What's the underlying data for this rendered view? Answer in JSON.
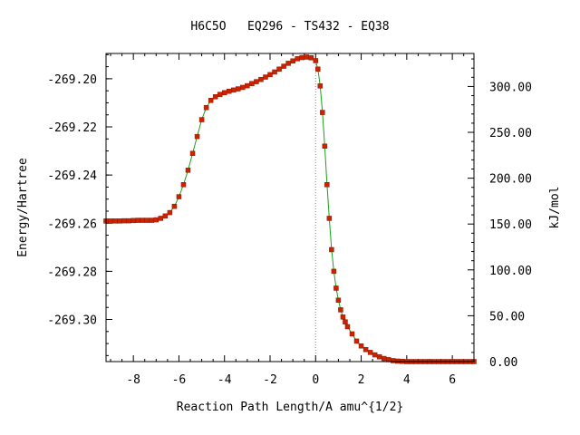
{
  "chart_data": {
    "type": "line",
    "title": "H6C5O   EQ296 - TS432 - EQ38",
    "xlabel": "Reaction Path Length/A amu^{1/2}",
    "ylabel": "Energy/Hartree",
    "y2label": "kJ/mol",
    "xlim": [
      -9.2,
      6.95
    ],
    "ylim": [
      -269.3175,
      -269.1895
    ],
    "y2lim": [
      0,
      336
    ],
    "xticks": [
      "-8",
      "-6",
      "-4",
      "-2",
      "0",
      "2",
      "4",
      "6"
    ],
    "xtick_values": [
      -8,
      -6,
      -4,
      -2,
      0,
      2,
      4,
      6
    ],
    "yticks": [
      "-269.20",
      "-269.22",
      "-269.24",
      "-269.26",
      "-269.28",
      "-269.30"
    ],
    "ytick_values": [
      -269.2,
      -269.22,
      -269.24,
      -269.26,
      -269.28,
      -269.3
    ],
    "y2ticks": [
      "300.00",
      "250.00",
      "200.00",
      "150.00",
      "100.00",
      "50.00",
      "0.00"
    ],
    "y2tick_values": [
      300,
      250,
      200,
      150,
      100,
      50,
      0
    ],
    "ts_marker_x": 0,
    "grid": false,
    "legend": "none",
    "colors": {
      "line": "#1aa01a",
      "marker": "#cc2200",
      "ts_line": "#888888",
      "axes": "#000000"
    },
    "series": [
      {
        "x": [
          -9.2,
          -9.0,
          -8.8,
          -8.6,
          -8.4,
          -8.2,
          -8.0,
          -7.8,
          -7.6,
          -7.4,
          -7.2,
          -7.0,
          -6.8,
          -6.6,
          -6.4,
          -6.2,
          -6.0,
          -5.8,
          -5.6,
          -5.4,
          -5.2,
          -5.0,
          -4.8,
          -4.6,
          -4.4,
          -4.2,
          -4.0,
          -3.8,
          -3.6,
          -3.4,
          -3.2,
          -3.0,
          -2.8,
          -2.6,
          -2.4,
          -2.2,
          -2.0,
          -1.8,
          -1.6,
          -1.4,
          -1.2,
          -1.0,
          -0.8,
          -0.6,
          -0.4,
          -0.2,
          0.0,
          0.1,
          0.2,
          0.3,
          0.4,
          0.5,
          0.6,
          0.7,
          0.8,
          0.9,
          1.0,
          1.1,
          1.2,
          1.3,
          1.4,
          1.6,
          1.8,
          2.0,
          2.2,
          2.4,
          2.6,
          2.8,
          3.0,
          3.2,
          3.4,
          3.6,
          3.8,
          4.0,
          4.2,
          4.4,
          4.6,
          4.8,
          5.0,
          5.2,
          5.4,
          5.6,
          5.8,
          6.0,
          6.2,
          6.4,
          6.6,
          6.8,
          6.95
        ],
        "y": [
          -269.2591,
          -269.2591,
          -269.2591,
          -269.2591,
          -269.259,
          -269.259,
          -269.2589,
          -269.2588,
          -269.2588,
          -269.2588,
          -269.2588,
          -269.2586,
          -269.258,
          -269.257,
          -269.2556,
          -269.253,
          -269.249,
          -269.244,
          -269.238,
          -269.231,
          -269.224,
          -269.217,
          -269.212,
          -269.209,
          -269.2075,
          -269.2065,
          -269.2058,
          -269.2052,
          -269.2047,
          -269.2042,
          -269.2036,
          -269.2029,
          -269.202,
          -269.2012,
          -269.2003,
          -269.1993,
          -269.1983,
          -269.1972,
          -269.196,
          -269.1948,
          -269.1936,
          -269.1926,
          -269.1917,
          -269.1912,
          -269.191,
          -269.1913,
          -269.1925,
          -269.196,
          -269.203,
          -269.214,
          -269.228,
          -269.244,
          -269.258,
          -269.271,
          -269.28,
          -269.287,
          -269.292,
          -269.296,
          -269.299,
          -269.301,
          -269.303,
          -269.306,
          -269.309,
          -269.311,
          -269.3125,
          -269.3137,
          -269.3147,
          -269.3155,
          -269.3162,
          -269.3167,
          -269.3171,
          -269.3173,
          -269.3174,
          -269.3175,
          -269.3175,
          -269.3175,
          -269.3175,
          -269.3175,
          -269.3175,
          -269.3175,
          -269.3175,
          -269.3175,
          -269.3175,
          -269.3175,
          -269.3175,
          -269.3175,
          -269.3175,
          -269.3175,
          -269.3175
        ]
      }
    ]
  }
}
